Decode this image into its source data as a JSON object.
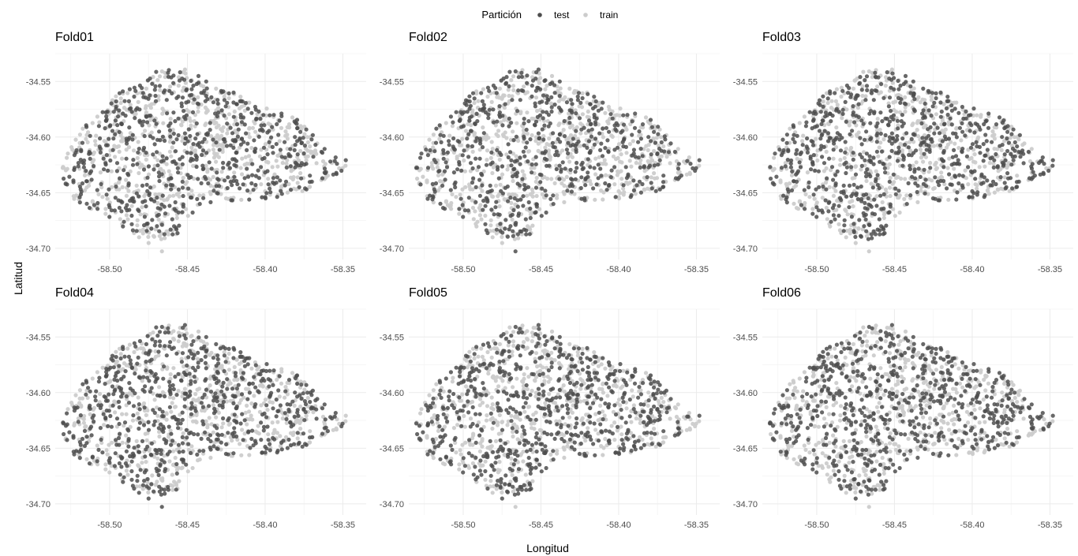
{
  "chart_data": {
    "type": "scatter",
    "facets": [
      "Fold01",
      "Fold02",
      "Fold03",
      "Fold04",
      "Fold05",
      "Fold06"
    ],
    "xlabel": "Longitud",
    "ylabel": "Latitud",
    "xlim": [
      -58.535,
      -58.335
    ],
    "ylim": [
      -34.71,
      -34.525
    ],
    "x_ticks": [
      -58.5,
      -58.45,
      -58.4,
      -58.35
    ],
    "x_tick_labels": [
      "-58.50",
      "-58.45",
      "-58.40",
      "-58.35"
    ],
    "y_ticks": [
      -34.55,
      -34.6,
      -34.65,
      -34.7
    ],
    "y_tick_labels": [
      "-34.55",
      "-34.60",
      "-34.65",
      "-34.70"
    ],
    "grid": true,
    "legend": {
      "title": "Partición",
      "placement": "top",
      "entries": [
        {
          "label": "test",
          "color": "#4d4d4d"
        },
        {
          "label": "train",
          "color": "#cccccc"
        }
      ]
    },
    "region_outline": [
      [
        -58.529,
        -34.615
      ],
      [
        -58.522,
        -34.598
      ],
      [
        -58.512,
        -34.585
      ],
      [
        -58.5,
        -34.57
      ],
      [
        -58.492,
        -34.556
      ],
      [
        -58.482,
        -34.548
      ],
      [
        -58.47,
        -34.541
      ],
      [
        -58.458,
        -34.534
      ],
      [
        -58.446,
        -34.543
      ],
      [
        -58.432,
        -34.552
      ],
      [
        -58.418,
        -34.561
      ],
      [
        -58.404,
        -34.572
      ],
      [
        -58.392,
        -34.577
      ],
      [
        -58.38,
        -34.583
      ],
      [
        -58.372,
        -34.59
      ],
      [
        -58.366,
        -34.602
      ],
      [
        -58.36,
        -34.612
      ],
      [
        -58.348,
        -34.62
      ],
      [
        -58.34,
        -34.624
      ],
      [
        -58.352,
        -34.632
      ],
      [
        -58.364,
        -34.641
      ],
      [
        -58.378,
        -34.65
      ],
      [
        -58.392,
        -34.656
      ],
      [
        -58.41,
        -34.657
      ],
      [
        -58.426,
        -34.657
      ],
      [
        -58.44,
        -34.66
      ],
      [
        -58.45,
        -34.675
      ],
      [
        -58.458,
        -34.69
      ],
      [
        -58.466,
        -34.704
      ],
      [
        -58.474,
        -34.696
      ],
      [
        -58.484,
        -34.688
      ],
      [
        -58.496,
        -34.676
      ],
      [
        -58.508,
        -34.667
      ],
      [
        -58.52,
        -34.66
      ],
      [
        -58.528,
        -34.65
      ],
      [
        -58.531,
        -34.632
      ]
    ],
    "points_per_facet": 1300,
    "test_share": 0.5
  }
}
